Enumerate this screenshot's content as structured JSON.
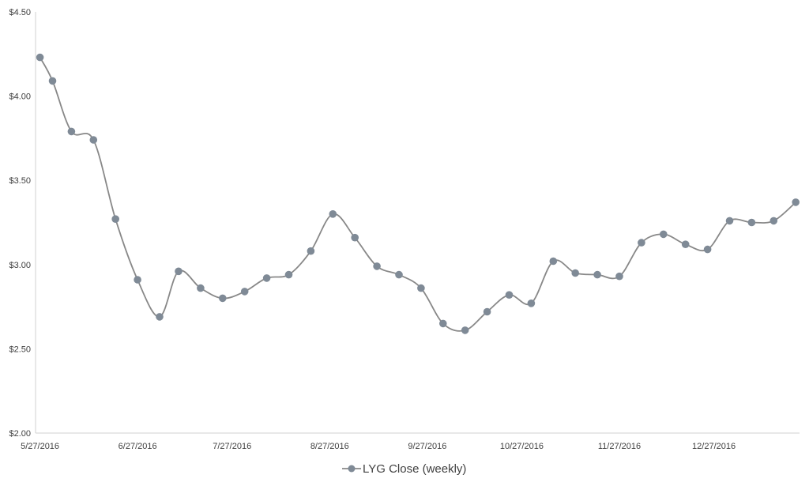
{
  "chart_data": {
    "type": "line",
    "title": "",
    "xlabel": "",
    "ylabel": "",
    "ylim": [
      2.0,
      4.5
    ],
    "y_ticks": [
      "$2.00",
      "$2.50",
      "$3.00",
      "$3.50",
      "$4.00",
      "$4.50"
    ],
    "x_ticks": [
      "5/27/2016",
      "6/27/2016",
      "7/27/2016",
      "8/27/2016",
      "9/27/2016",
      "10/27/2016",
      "11/27/2016",
      "12/27/2016"
    ],
    "grid": false,
    "legend_position": "bottom",
    "series_color": "#7f8a96",
    "line_color": "#888888",
    "series": [
      {
        "name": "LYG Close (weekly)",
        "x": [
          "2016-05-27",
          "2016-05-31",
          "2016-06-06",
          "2016-06-13",
          "2016-06-20",
          "2016-06-27",
          "2016-07-04",
          "2016-07-10",
          "2016-07-17",
          "2016-07-24",
          "2016-07-31",
          "2016-08-07",
          "2016-08-14",
          "2016-08-21",
          "2016-08-28",
          "2016-09-04",
          "2016-09-11",
          "2016-09-18",
          "2016-09-25",
          "2016-10-02",
          "2016-10-09",
          "2016-10-16",
          "2016-10-23",
          "2016-10-30",
          "2016-11-06",
          "2016-11-13",
          "2016-11-20",
          "2016-11-27",
          "2016-12-04",
          "2016-12-11",
          "2016-12-18",
          "2016-12-25",
          "2017-01-01",
          "2017-01-08",
          "2017-01-15",
          "2017-01-22"
        ],
        "values": [
          4.23,
          4.09,
          3.79,
          3.74,
          3.27,
          2.91,
          2.69,
          2.96,
          2.86,
          2.8,
          2.84,
          2.92,
          2.94,
          3.08,
          3.3,
          3.16,
          2.99,
          2.94,
          2.86,
          2.65,
          2.61,
          2.72,
          2.82,
          2.77,
          3.02,
          2.95,
          2.94,
          2.93,
          3.13,
          3.18,
          3.12,
          3.09,
          3.26,
          3.25,
          3.26,
          3.37
        ]
      }
    ]
  }
}
